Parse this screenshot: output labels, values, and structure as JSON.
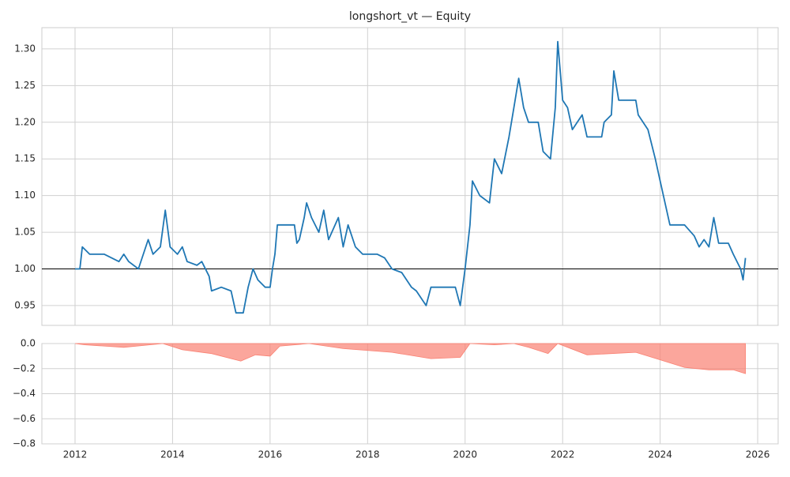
{
  "chart_data": [
    {
      "type": "line",
      "title": "longshort_vt — Equity",
      "x": [
        2012.0,
        2012.1,
        2012.15,
        2012.3,
        2012.6,
        2012.9,
        2013.0,
        2013.1,
        2013.3,
        2013.5,
        2013.6,
        2013.75,
        2013.85,
        2013.95,
        2014.1,
        2014.2,
        2014.3,
        2014.5,
        2014.6,
        2014.75,
        2014.8,
        2015.0,
        2015.2,
        2015.3,
        2015.45,
        2015.55,
        2015.65,
        2015.75,
        2015.9,
        2016.0,
        2016.05,
        2016.1,
        2016.15,
        2016.5,
        2016.55,
        2016.6,
        2016.7,
        2016.75,
        2016.85,
        2017.0,
        2017.1,
        2017.2,
        2017.4,
        2017.5,
        2017.6,
        2017.75,
        2017.9,
        2018.2,
        2018.35,
        2018.5,
        2018.7,
        2018.9,
        2019.0,
        2019.2,
        2019.3,
        2019.5,
        2019.8,
        2019.9,
        2020.0,
        2020.1,
        2020.15,
        2020.3,
        2020.5,
        2020.6,
        2020.75,
        2020.9,
        2021.0,
        2021.1,
        2021.2,
        2021.3,
        2021.5,
        2021.6,
        2021.75,
        2021.85,
        2021.9,
        2022.0,
        2022.1,
        2022.2,
        2022.4,
        2022.5,
        2022.8,
        2022.85,
        2023.0,
        2023.05,
        2023.15,
        2023.5,
        2023.55,
        2023.75,
        2023.9,
        2024.0,
        2024.1,
        2024.2,
        2024.5,
        2024.7,
        2024.8,
        2024.9,
        2025.0,
        2025.1,
        2025.2,
        2025.4,
        2025.5,
        2025.65,
        2025.7,
        2025.75
      ],
      "series": [
        {
          "color": "#1f77b4",
          "values": [
            1.0,
            1.0,
            1.03,
            1.02,
            1.02,
            1.01,
            1.02,
            1.01,
            1.0,
            1.04,
            1.02,
            1.03,
            1.08,
            1.03,
            1.02,
            1.03,
            1.01,
            1.005,
            1.01,
            0.99,
            0.97,
            0.975,
            0.97,
            0.94,
            0.94,
            0.975,
            1.0,
            0.985,
            0.975,
            0.975,
            1.0,
            1.02,
            1.06,
            1.06,
            1.035,
            1.04,
            1.07,
            1.09,
            1.07,
            1.05,
            1.08,
            1.04,
            1.07,
            1.03,
            1.06,
            1.03,
            1.02,
            1.02,
            1.015,
            1.0,
            0.995,
            0.975,
            0.97,
            0.95,
            0.975,
            0.975,
            0.975,
            0.95,
            1.0,
            1.06,
            1.12,
            1.1,
            1.09,
            1.15,
            1.13,
            1.18,
            1.22,
            1.26,
            1.22,
            1.2,
            1.2,
            1.16,
            1.15,
            1.22,
            1.31,
            1.23,
            1.22,
            1.19,
            1.21,
            1.18,
            1.18,
            1.2,
            1.21,
            1.27,
            1.23,
            1.23,
            1.21,
            1.19,
            1.15,
            1.12,
            1.09,
            1.06,
            1.06,
            1.045,
            1.03,
            1.04,
            1.03,
            1.07,
            1.035,
            1.035,
            1.02,
            1.0,
            0.985,
            1.015
          ]
        }
      ],
      "hline": 1,
      "xlim": [
        2011.32,
        2026.42
      ],
      "ylim": [
        0.923,
        1.329
      ],
      "yticks": [
        0.95,
        {
          "value": 1,
          "label": "1.00"
        },
        1.05,
        {
          "value": 1.1,
          "label": "1.10"
        },
        1.15,
        {
          "value": 1.2,
          "label": "1.20"
        },
        1.25,
        {
          "value": 1.3,
          "label": "1.30"
        }
      ],
      "grid": true
    },
    {
      "type": "area",
      "x": [
        2012.0,
        2012.2,
        2013.0,
        2013.8,
        2014.2,
        2014.8,
        2015.4,
        2015.7,
        2016.0,
        2016.2,
        2016.8,
        2017.5,
        2018.5,
        2019.3,
        2019.9,
        2020.1,
        2020.6,
        2021.0,
        2021.3,
        2021.7,
        2021.9,
        2022.5,
        2023.0,
        2023.5,
        2024.0,
        2024.5,
        2025.0,
        2025.5,
        2025.75
      ],
      "series": [
        {
          "color": "#fa8072",
          "values": [
            0,
            -0.01,
            -0.03,
            0,
            -0.05,
            -0.08,
            -0.14,
            -0.09,
            -0.1,
            -0.02,
            0,
            -0.04,
            -0.07,
            -0.12,
            -0.11,
            0,
            -0.01,
            0,
            -0.03,
            -0.08,
            0,
            -0.09,
            -0.08,
            -0.07,
            -0.13,
            -0.19,
            -0.21,
            -0.21,
            -0.24
          ]
        }
      ],
      "xlim": [
        2011.32,
        2026.42
      ],
      "ylim": [
        -0.8,
        0
      ],
      "xticks": [
        2012,
        2014,
        2016,
        2018,
        2020,
        2022,
        2024,
        2026
      ],
      "yticks": [
        {
          "value": -0.8,
          "label": "−0.8"
        },
        {
          "value": -0.6,
          "label": "−0.6"
        },
        {
          "value": -0.4,
          "label": "−0.4"
        },
        {
          "value": -0.2,
          "label": "−0.2"
        },
        {
          "value": 0,
          "label": "0.0"
        }
      ],
      "grid": true
    }
  ]
}
